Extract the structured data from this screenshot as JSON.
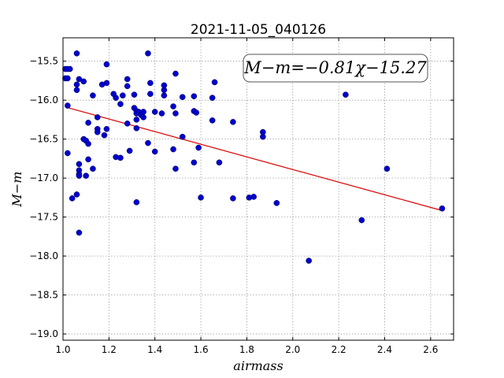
{
  "chart_data": {
    "type": "scatter",
    "title": "2021-11-05_040126",
    "xlabel": "airmass",
    "ylabel": "M−m",
    "xlim": [
      1.0,
      2.7
    ],
    "ylim": [
      -19.08,
      -15.2
    ],
    "y_inverted": true,
    "grid": true,
    "x_ticks": [
      "1.0",
      "1.2",
      "1.4",
      "1.6",
      "1.8",
      "2.0",
      "2.2",
      "2.4",
      "2.6"
    ],
    "y_ticks": [
      "−15.5",
      "−16.0",
      "−16.5",
      "−17.0",
      "−17.5",
      "−18.0",
      "−18.5",
      "−19.0"
    ],
    "annotation": "M−m=−0.81χ−15.27",
    "point_color": "#0000cc",
    "fit_color": "#dd0000",
    "fit": {
      "slope": -0.81,
      "intercept": -15.27,
      "x_range": [
        1.02,
        2.65
      ]
    },
    "points": [
      [
        1.01,
        -15.6
      ],
      [
        1.02,
        -15.6
      ],
      [
        1.03,
        -15.6
      ],
      [
        1.01,
        -15.72
      ],
      [
        1.02,
        -15.72
      ],
      [
        1.02,
        -16.07
      ],
      [
        1.02,
        -16.68
      ],
      [
        1.04,
        -17.26
      ],
      [
        1.06,
        -17.21
      ],
      [
        1.06,
        -15.4
      ],
      [
        1.07,
        -15.73
      ],
      [
        1.06,
        -15.8
      ],
      [
        1.06,
        -15.87
      ],
      [
        1.09,
        -15.76
      ],
      [
        1.07,
        -16.82
      ],
      [
        1.07,
        -16.9
      ],
      [
        1.07,
        -16.95
      ],
      [
        1.07,
        -16.97
      ],
      [
        1.07,
        -17.7
      ],
      [
        1.09,
        -16.5
      ],
      [
        1.1,
        -16.52
      ],
      [
        1.1,
        -16.97
      ],
      [
        1.11,
        -16.56
      ],
      [
        1.11,
        -16.76
      ],
      [
        1.11,
        -16.29
      ],
      [
        1.13,
        -15.94
      ],
      [
        1.13,
        -16.88
      ],
      [
        1.15,
        -16.22
      ],
      [
        1.15,
        -16.37
      ],
      [
        1.15,
        -16.41
      ],
      [
        1.17,
        -15.8
      ],
      [
        1.19,
        -15.54
      ],
      [
        1.19,
        -15.78
      ],
      [
        1.18,
        -16.45
      ],
      [
        1.19,
        -16.37
      ],
      [
        1.22,
        -15.92
      ],
      [
        1.23,
        -15.97
      ],
      [
        1.23,
        -16.73
      ],
      [
        1.25,
        -16.74
      ],
      [
        1.25,
        -16.05
      ],
      [
        1.26,
        -15.94
      ],
      [
        1.28,
        -15.73
      ],
      [
        1.28,
        -15.82
      ],
      [
        1.28,
        -16.3
      ],
      [
        1.29,
        -16.65
      ],
      [
        1.31,
        -16.1
      ],
      [
        1.31,
        -15.93
      ],
      [
        1.32,
        -16.14
      ],
      [
        1.32,
        -16.17
      ],
      [
        1.32,
        -16.25
      ],
      [
        1.32,
        -16.36
      ],
      [
        1.33,
        -16.15
      ],
      [
        1.34,
        -16.19
      ],
      [
        1.35,
        -16.15
      ],
      [
        1.35,
        -16.22
      ],
      [
        1.32,
        -17.31
      ],
      [
        1.37,
        -15.4
      ],
      [
        1.38,
        -15.78
      ],
      [
        1.38,
        -15.92
      ],
      [
        1.37,
        -16.55
      ],
      [
        1.4,
        -16.15
      ],
      [
        1.4,
        -16.66
      ],
      [
        1.43,
        -16.17
      ],
      [
        1.44,
        -15.87
      ],
      [
        1.44,
        -15.81
      ],
      [
        1.44,
        -15.94
      ],
      [
        1.49,
        -15.66
      ],
      [
        1.48,
        -16.08
      ],
      [
        1.49,
        -16.17
      ],
      [
        1.48,
        -16.63
      ],
      [
        1.49,
        -16.88
      ],
      [
        1.52,
        -15.96
      ],
      [
        1.52,
        -16.47
      ],
      [
        1.57,
        -15.95
      ],
      [
        1.57,
        -16.14
      ],
      [
        1.58,
        -16.16
      ],
      [
        1.57,
        -16.8
      ],
      [
        1.59,
        -16.61
      ],
      [
        1.6,
        -17.25
      ],
      [
        1.65,
        -15.97
      ],
      [
        1.66,
        -15.77
      ],
      [
        1.65,
        -16.26
      ],
      [
        1.68,
        -16.8
      ],
      [
        1.74,
        -16.28
      ],
      [
        1.74,
        -17.26
      ],
      [
        1.81,
        -17.25
      ],
      [
        1.83,
        -17.24
      ],
      [
        1.87,
        -16.41
      ],
      [
        1.87,
        -16.47
      ],
      [
        1.93,
        -17.32
      ],
      [
        2.07,
        -18.06
      ],
      [
        2.23,
        -15.93
      ],
      [
        2.3,
        -17.54
      ],
      [
        2.41,
        -16.88
      ],
      [
        2.65,
        -17.39
      ]
    ]
  }
}
